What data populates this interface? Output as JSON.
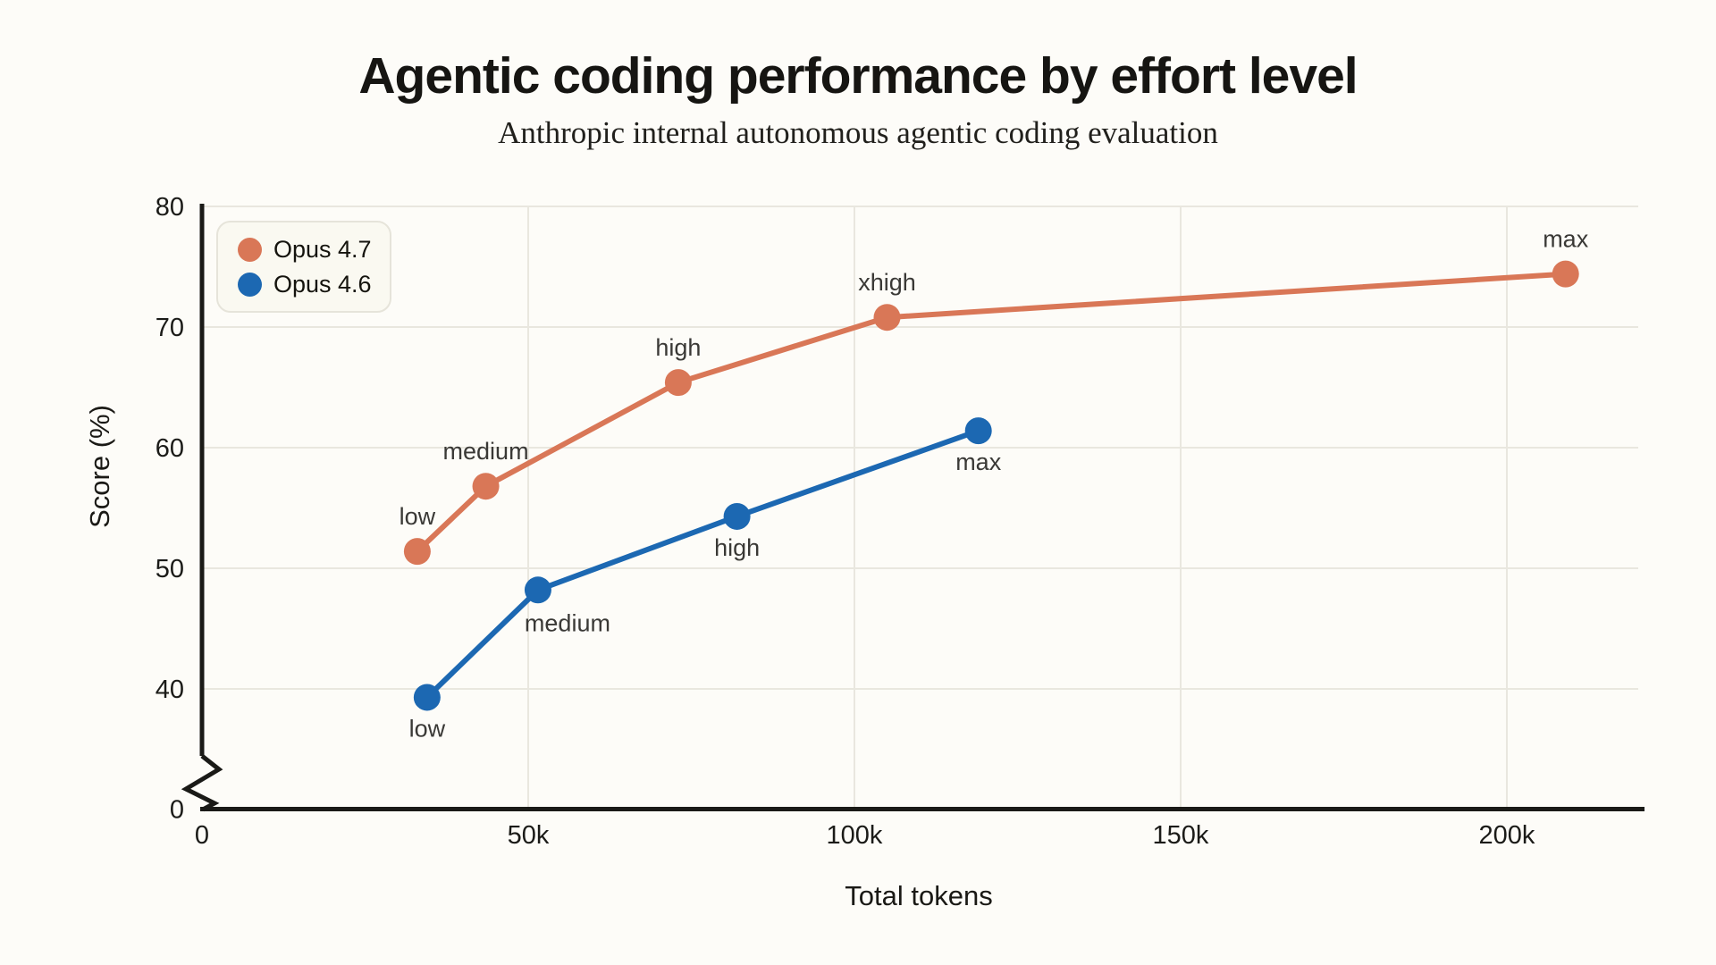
{
  "chart_data": {
    "type": "line",
    "title": "Agentic coding performance by effort level",
    "subtitle": "Anthropic internal autonomous agentic coding evaluation",
    "xlabel": "Total tokens",
    "ylabel": "Score (%)",
    "grid": true,
    "axis_break_on_y": true,
    "xlim": [
      0,
      220000
    ],
    "ylim": [
      0,
      80
    ],
    "legend_position": "top-left",
    "x_ticks": [
      {
        "value": 0,
        "label": "0"
      },
      {
        "value": 50000,
        "label": "50k"
      },
      {
        "value": 100000,
        "label": "100k"
      },
      {
        "value": 150000,
        "label": "150k"
      },
      {
        "value": 200000,
        "label": "200k"
      }
    ],
    "y_ticks": [
      {
        "value": 0,
        "label": "0"
      },
      {
        "value": 40,
        "label": "40"
      },
      {
        "value": 50,
        "label": "50"
      },
      {
        "value": 60,
        "label": "60"
      },
      {
        "value": 70,
        "label": "70"
      },
      {
        "value": 80,
        "label": "80"
      }
    ],
    "series": [
      {
        "name": "Opus 4.7",
        "color": "#D97757",
        "points": [
          {
            "x": 33000,
            "y": 51.4,
            "label": "low",
            "label_pos": "above"
          },
          {
            "x": 43500,
            "y": 56.8,
            "label": "medium",
            "label_pos": "above"
          },
          {
            "x": 73000,
            "y": 65.4,
            "label": "high",
            "label_pos": "above"
          },
          {
            "x": 105000,
            "y": 70.8,
            "label": "xhigh",
            "label_pos": "above"
          },
          {
            "x": 209000,
            "y": 74.4,
            "label": "max",
            "label_pos": "above"
          }
        ]
      },
      {
        "name": "Opus 4.6",
        "color": "#1C68B2",
        "points": [
          {
            "x": 34500,
            "y": 39.3,
            "label": "low",
            "label_pos": "below"
          },
          {
            "x": 51500,
            "y": 48.2,
            "label": "medium",
            "label_pos": "below-right"
          },
          {
            "x": 82000,
            "y": 54.3,
            "label": "high",
            "label_pos": "below"
          },
          {
            "x": 119000,
            "y": 61.4,
            "label": "max",
            "label_pos": "below"
          }
        ]
      }
    ],
    "colors": {
      "background": "#FDFCF8",
      "gridline": "#E9E7DF",
      "axis": "#1A1A17",
      "tick_text": "#1B1B18",
      "point_label_text": "#3A3936",
      "legend_bg": "#FAF9F1",
      "legend_border": "#E6E4DA"
    }
  }
}
